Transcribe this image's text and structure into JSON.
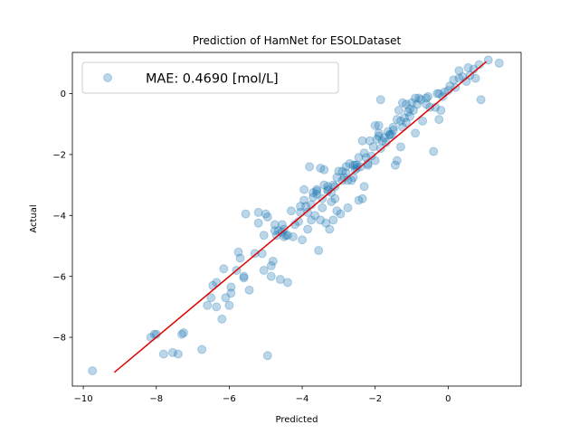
{
  "chart_data": {
    "type": "scatter",
    "title": "Prediction of HamNet for ESOLDataset",
    "xlabel": "Predicted",
    "ylabel": "Actual",
    "xlim": [
      -10.3,
      2.0
    ],
    "ylim": [
      -9.6,
      1.35
    ],
    "xticks": [
      -10,
      -8,
      -6,
      -4,
      -2,
      0
    ],
    "yticks": [
      -8,
      -6,
      -4,
      -2,
      0
    ],
    "xtick_labels": [
      "−10",
      "−8",
      "−6",
      "−4",
      "−2",
      "0"
    ],
    "ytick_labels": [
      "−8",
      "−6",
      "−4",
      "−2",
      "0"
    ],
    "grid": false,
    "legend": {
      "entries": [
        "MAE: 0.4690 [mol/L]"
      ],
      "placement": "top-left"
    },
    "colors": {
      "points": "#1f77b4",
      "fit_line": "#e00000"
    },
    "fit_line": {
      "x": [
        -9.15,
        1.05
      ],
      "y": [
        -9.15,
        1.05
      ]
    },
    "series": [
      {
        "name": "MAE: 0.4690 [mol/L]",
        "x": [
          -9.75,
          -8.15,
          -8.05,
          -7.8,
          -7.4,
          -7.3,
          -6.75,
          -6.6,
          -6.5,
          -6.45,
          -6.35,
          -6.2,
          -6.15,
          -6.1,
          -5.95,
          -5.95,
          -5.75,
          -5.7,
          -5.6,
          -5.6,
          -5.55,
          -5.45,
          -5.3,
          -5.2,
          -5.1,
          -5.05,
          -5.05,
          -4.95,
          -4.95,
          -4.85,
          -4.85,
          -4.8,
          -4.75,
          -4.7,
          -4.65,
          -4.6,
          -4.55,
          -4.5,
          -4.5,
          -4.45,
          -4.4,
          -4.3,
          -4.2,
          -4.1,
          -4.05,
          -4.0,
          -3.95,
          -3.95,
          -3.9,
          -3.85,
          -3.8,
          -3.75,
          -3.75,
          -3.7,
          -3.65,
          -3.6,
          -3.6,
          -3.55,
          -3.5,
          -3.45,
          -3.45,
          -3.4,
          -3.35,
          -3.3,
          -3.3,
          -3.25,
          -3.2,
          -3.2,
          -3.15,
          -3.1,
          -3.05,
          -3.0,
          -2.95,
          -2.9,
          -2.85,
          -2.8,
          -2.8,
          -2.75,
          -2.7,
          -2.65,
          -2.6,
          -2.55,
          -2.5,
          -2.5,
          -2.45,
          -2.4,
          -2.35,
          -2.3,
          -2.3,
          -2.25,
          -2.2,
          -2.15,
          -2.1,
          -2.05,
          -2.0,
          -1.95,
          -1.9,
          -1.9,
          -1.85,
          -1.8,
          -1.75,
          -1.7,
          -1.65,
          -1.6,
          -1.55,
          -1.5,
          -1.45,
          -1.4,
          -1.35,
          -1.3,
          -1.25,
          -1.2,
          -1.15,
          -1.1,
          -1.05,
          -1.0,
          -0.95,
          -0.9,
          -0.85,
          -0.8,
          -0.75,
          -0.7,
          -0.6,
          -0.5,
          -0.4,
          -0.3,
          -0.2,
          -0.15,
          -0.1,
          0.05,
          0.2,
          0.3,
          0.4,
          0.5,
          0.6,
          0.7,
          0.85,
          0.9,
          1.1,
          1.4,
          -1.9,
          -2.35,
          -2.45,
          -0.25,
          -1.3,
          -1.4,
          -3.6,
          -4.05,
          -4.75,
          -5.0,
          -5.2,
          -6.0,
          -6.35,
          -7.25,
          -7.55,
          -8.0,
          -1.25,
          -1.15,
          -0.55,
          -0.25,
          0.15,
          0.55,
          -2.6,
          -2.75,
          -3.15,
          -3.5,
          -3.85,
          -4.25,
          -4.55,
          -5.8,
          -1.6,
          -1.85,
          -2.2,
          -2.9,
          -3.05,
          -3.4,
          -3.7,
          -4.4,
          -0.9,
          -1.05,
          -1.5,
          -2.0,
          -2.55,
          -3.1,
          -3.3,
          -0.6,
          -0.35,
          0.0,
          0.3,
          0.75
        ],
        "y": [
          -9.1,
          -8.0,
          -7.9,
          -8.55,
          -8.55,
          -7.9,
          -8.4,
          -6.95,
          -6.7,
          -6.3,
          -6.2,
          -7.4,
          -5.75,
          -6.7,
          -6.55,
          -6.35,
          -5.2,
          -5.4,
          -6.05,
          -6.0,
          -3.95,
          -6.45,
          -5.25,
          -3.9,
          -5.25,
          -5.8,
          -4.65,
          -8.6,
          -4.05,
          -5.65,
          -6.0,
          -5.5,
          -4.3,
          -4.65,
          -4.5,
          -6.1,
          -4.55,
          -4.7,
          -4.45,
          -4.65,
          -6.2,
          -3.85,
          -4.3,
          -4.2,
          -3.9,
          -4.8,
          -3.15,
          -3.5,
          -3.7,
          -4.45,
          -2.4,
          -3.65,
          -4.15,
          -3.4,
          -4.0,
          -3.15,
          -3.2,
          -5.15,
          -4.15,
          -3.45,
          -3.75,
          -3.0,
          -4.25,
          -3.05,
          -3.15,
          -4.45,
          -3.55,
          -3.25,
          -4.15,
          -3.05,
          -3.85,
          -2.55,
          -3.95,
          -2.85,
          -2.75,
          -2.4,
          -2.6,
          -3.75,
          -2.3,
          -2.85,
          -2.35,
          -2.5,
          -2.45,
          -2.35,
          -3.5,
          -2.4,
          -3.45,
          -1.95,
          -3.05,
          -2.1,
          -2.35,
          -1.55,
          -2.05,
          -1.75,
          -2.2,
          -1.5,
          -1.4,
          -1.05,
          -0.2,
          -1.55,
          -1.45,
          -1.6,
          -1.25,
          -1.35,
          -1.35,
          -1.1,
          -2.35,
          -0.85,
          -0.55,
          -0.9,
          -1.1,
          -0.8,
          -0.35,
          -0.6,
          -0.5,
          -0.3,
          -0.55,
          -0.15,
          -0.35,
          -0.15,
          -0.2,
          -0.9,
          -0.35,
          -0.45,
          -1.9,
          0.0,
          -0.55,
          -0.1,
          0.05,
          0.25,
          0.2,
          0.75,
          0.55,
          0.4,
          0.6,
          0.8,
          0.95,
          -0.2,
          1.1,
          1.0,
          -1.3,
          -1.55,
          -2.1,
          -0.85,
          -1.75,
          -2.2,
          -3.3,
          -3.7,
          -4.5,
          -3.95,
          -4.25,
          -6.95,
          -7.0,
          -7.85,
          -8.5,
          -7.9,
          -0.3,
          -0.95,
          -0.1,
          0.0,
          0.45,
          0.85,
          -2.75,
          -2.85,
          -3.0,
          -2.45,
          -3.9,
          -4.7,
          -4.3,
          -5.8,
          -1.35,
          -1.8,
          -2.3,
          -2.55,
          -2.75,
          -2.5,
          -3.25,
          -4.65,
          -1.3,
          -0.75,
          -1.2,
          -1.05,
          -2.35,
          -3.45,
          -3.2,
          -0.15,
          -0.45,
          0.1,
          0.5,
          0.5
        ]
      }
    ]
  }
}
